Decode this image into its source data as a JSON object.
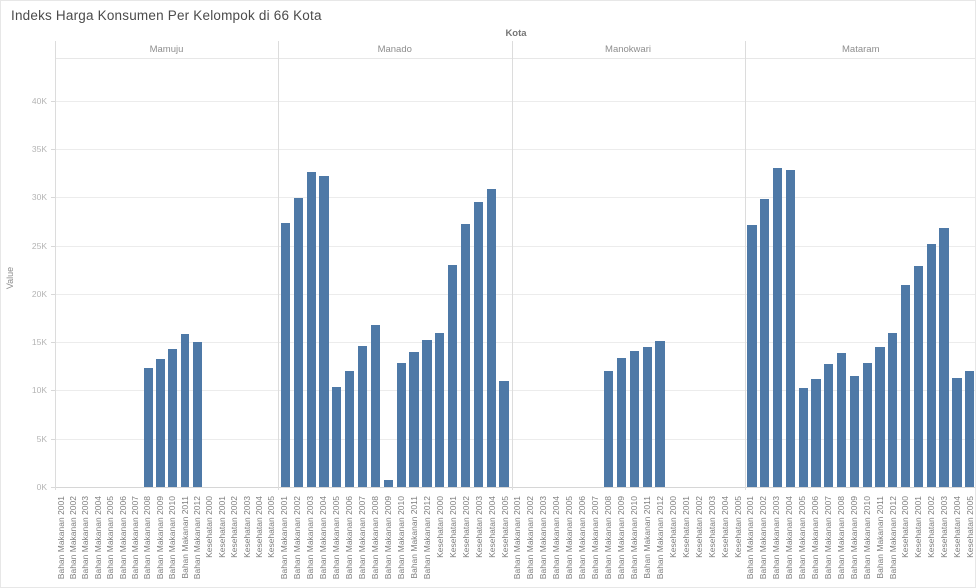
{
  "title": "Indeks Harga Konsumen Per Kelompok di 66 Kota",
  "column_header": "Kota",
  "y_axis": {
    "label": "Value",
    "ticks": [
      "0K",
      "5K",
      "10K",
      "15K",
      "20K",
      "25K",
      "30K",
      "35K",
      "40K"
    ],
    "tick_values": [
      0,
      5000,
      10000,
      15000,
      20000,
      25000,
      30000,
      35000,
      40000
    ]
  },
  "colors": {
    "bar": "#4e79a7",
    "grid": "#ececec",
    "separator": "#dcdcdc",
    "axis": "#d6d6d6"
  },
  "chart_data": {
    "type": "bar",
    "title": "Indeks Harga Konsumen Per Kelompok di 66 Kota",
    "panel_field": "Kota",
    "ylabel": "Value",
    "ylim": [
      0,
      44350
    ],
    "grid": true,
    "categories": [
      "Bahan Makanan 2001",
      "Bahan Makanan 2002",
      "Bahan Makanan 2003",
      "Bahan Makanan 2004",
      "Bahan Makanan 2005",
      "Bahan Makanan 2006",
      "Bahan Makanan 2007",
      "Bahan Makanan 2008",
      "Bahan Makanan 2009",
      "Bahan Makanan 2010",
      "Bahan Makanan 2011",
      "Bahan Makanan 2012",
      "Kesehatan 2000",
      "Kesehatan 2001",
      "Kesehatan 2002",
      "Kesehatan 2003",
      "Kesehatan 2004",
      "Kesehatan 2005"
    ],
    "series": [
      {
        "name": "Mamuju",
        "values": [
          null,
          null,
          null,
          null,
          null,
          null,
          null,
          12300,
          13300,
          14300,
          15900,
          15000,
          null,
          null,
          null,
          null,
          null,
          null
        ]
      },
      {
        "name": "Manado",
        "values": [
          27400,
          30000,
          32600,
          32200,
          10400,
          12000,
          14600,
          16800,
          700,
          12900,
          14000,
          15200,
          16000,
          23000,
          27300,
          29500,
          30900,
          11000
        ]
      },
      {
        "name": "Manokwari",
        "values": [
          null,
          null,
          null,
          null,
          null,
          null,
          null,
          12000,
          13400,
          14100,
          14500,
          15100,
          null,
          null,
          null,
          null,
          null,
          null
        ]
      },
      {
        "name": "Mataram",
        "values": [
          27200,
          29800,
          33100,
          32800,
          10300,
          11200,
          12700,
          13900,
          11500,
          12900,
          14500,
          16000,
          20900,
          22900,
          25200,
          26800,
          11300,
          12000
        ]
      }
    ]
  }
}
